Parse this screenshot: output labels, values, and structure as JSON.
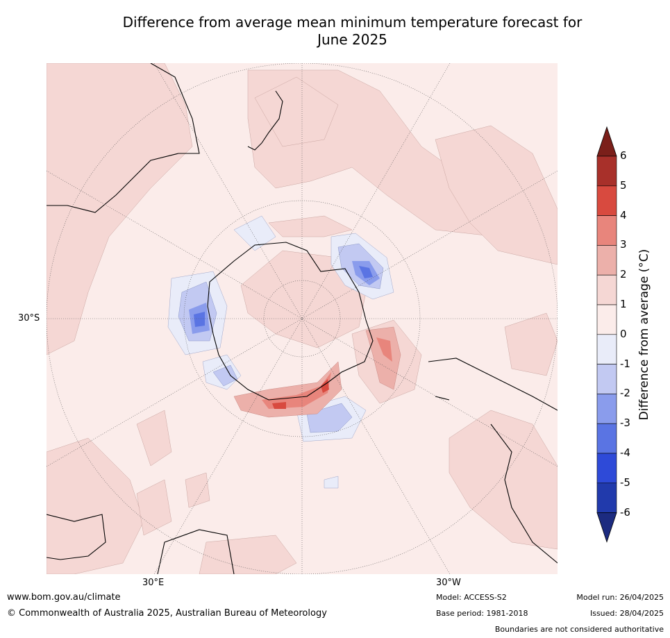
{
  "title_line1": "Difference from average mean minimum temperature forecast for",
  "title_line2": "June 2025",
  "map": {
    "projection": "south-polar-stereographic",
    "lat_label": "30°S",
    "lon_labels": {
      "east": "30°E",
      "west": "30°W"
    }
  },
  "colorbar": {
    "label": "Difference from average (°C)",
    "ticks": [
      "6",
      "5",
      "4",
      "3",
      "2",
      "1",
      "0",
      "-1",
      "-2",
      "-3",
      "-4",
      "-5",
      "-6"
    ],
    "colors": [
      "#7b1f1a",
      "#a8302a",
      "#d84a3f",
      "#e8857c",
      "#ecb0aa",
      "#f5d7d4",
      "#fbecea",
      "#e9ecf9",
      "#c2c9f2",
      "#8a9cec",
      "#5a74e3",
      "#2e4ad8",
      "#213aac",
      "#1c2b80"
    ]
  },
  "footer": {
    "url": "www.bom.gov.au/climate",
    "copyright": "© Commonwealth of Australia 2025, Australian Bureau of Meteorology",
    "model": "Model: ACCESS-S2",
    "base_period": "Base period: 1981-2018",
    "model_run": "Model run: 26/04/2025",
    "issued": "Issued: 28/04/2025",
    "disclaimer": "Boundaries are not considered authoritative"
  }
}
